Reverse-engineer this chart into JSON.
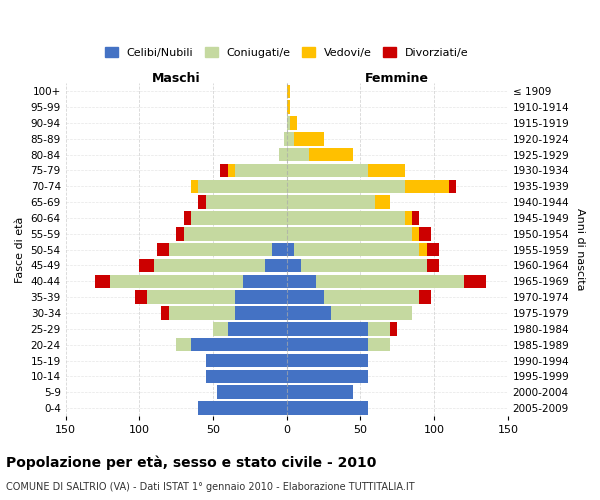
{
  "age_groups": [
    "0-4",
    "5-9",
    "10-14",
    "15-19",
    "20-24",
    "25-29",
    "30-34",
    "35-39",
    "40-44",
    "45-49",
    "50-54",
    "55-59",
    "60-64",
    "65-69",
    "70-74",
    "75-79",
    "80-84",
    "85-89",
    "90-94",
    "95-99",
    "100+"
  ],
  "birth_years": [
    "2005-2009",
    "2000-2004",
    "1995-1999",
    "1990-1994",
    "1985-1989",
    "1980-1984",
    "1975-1979",
    "1970-1974",
    "1965-1969",
    "1960-1964",
    "1955-1959",
    "1950-1954",
    "1945-1949",
    "1940-1944",
    "1935-1939",
    "1930-1934",
    "1925-1929",
    "1920-1924",
    "1915-1919",
    "1910-1914",
    "≤ 1909"
  ],
  "colors": {
    "celibi": "#4472c4",
    "coniugati": "#c5d9a0",
    "vedovi": "#ffc000",
    "divorziati": "#cc0000"
  },
  "maschi": {
    "celibi": [
      60,
      47,
      55,
      55,
      65,
      40,
      35,
      35,
      30,
      15,
      10,
      0,
      0,
      0,
      0,
      0,
      0,
      0,
      0,
      0,
      0
    ],
    "coniugati": [
      0,
      0,
      0,
      0,
      10,
      10,
      45,
      60,
      90,
      75,
      70,
      70,
      65,
      55,
      60,
      35,
      5,
      2,
      0,
      0,
      0
    ],
    "vedovi": [
      0,
      0,
      0,
      0,
      0,
      0,
      0,
      0,
      0,
      0,
      0,
      0,
      0,
      0,
      5,
      5,
      0,
      0,
      0,
      0,
      0
    ],
    "divorziati": [
      0,
      0,
      0,
      0,
      0,
      0,
      5,
      8,
      10,
      10,
      8,
      5,
      5,
      5,
      0,
      5,
      0,
      0,
      0,
      0,
      0
    ]
  },
  "femmine": {
    "celibi": [
      55,
      45,
      55,
      55,
      55,
      55,
      30,
      25,
      20,
      10,
      5,
      0,
      0,
      0,
      0,
      0,
      0,
      0,
      0,
      0,
      0
    ],
    "coniugati": [
      0,
      0,
      0,
      0,
      15,
      15,
      55,
      65,
      100,
      85,
      85,
      85,
      80,
      60,
      80,
      55,
      15,
      5,
      2,
      0,
      0
    ],
    "vedovi": [
      0,
      0,
      0,
      0,
      0,
      0,
      0,
      0,
      0,
      0,
      5,
      5,
      5,
      10,
      30,
      25,
      30,
      20,
      5,
      2,
      2
    ],
    "divorziati": [
      0,
      0,
      0,
      0,
      0,
      5,
      0,
      8,
      15,
      8,
      8,
      8,
      5,
      0,
      5,
      0,
      0,
      0,
      0,
      0,
      0
    ]
  },
  "xlim": 150,
  "title": "Popolazione per età, sesso e stato civile - 2010",
  "subtitle": "COMUNE DI SALTRIO (VA) - Dati ISTAT 1° gennaio 2010 - Elaborazione TUTTITALIA.IT",
  "ylabel_left": "Fasce di età",
  "ylabel_right": "Anni di nascita",
  "legend_labels": [
    "Celibi/Nubili",
    "Coniugati/e",
    "Vedovi/e",
    "Divorziati/e"
  ],
  "maschi_label": "Maschi",
  "femmine_label": "Femmine",
  "background_color": "#ffffff",
  "grid_color": "#cccccc"
}
